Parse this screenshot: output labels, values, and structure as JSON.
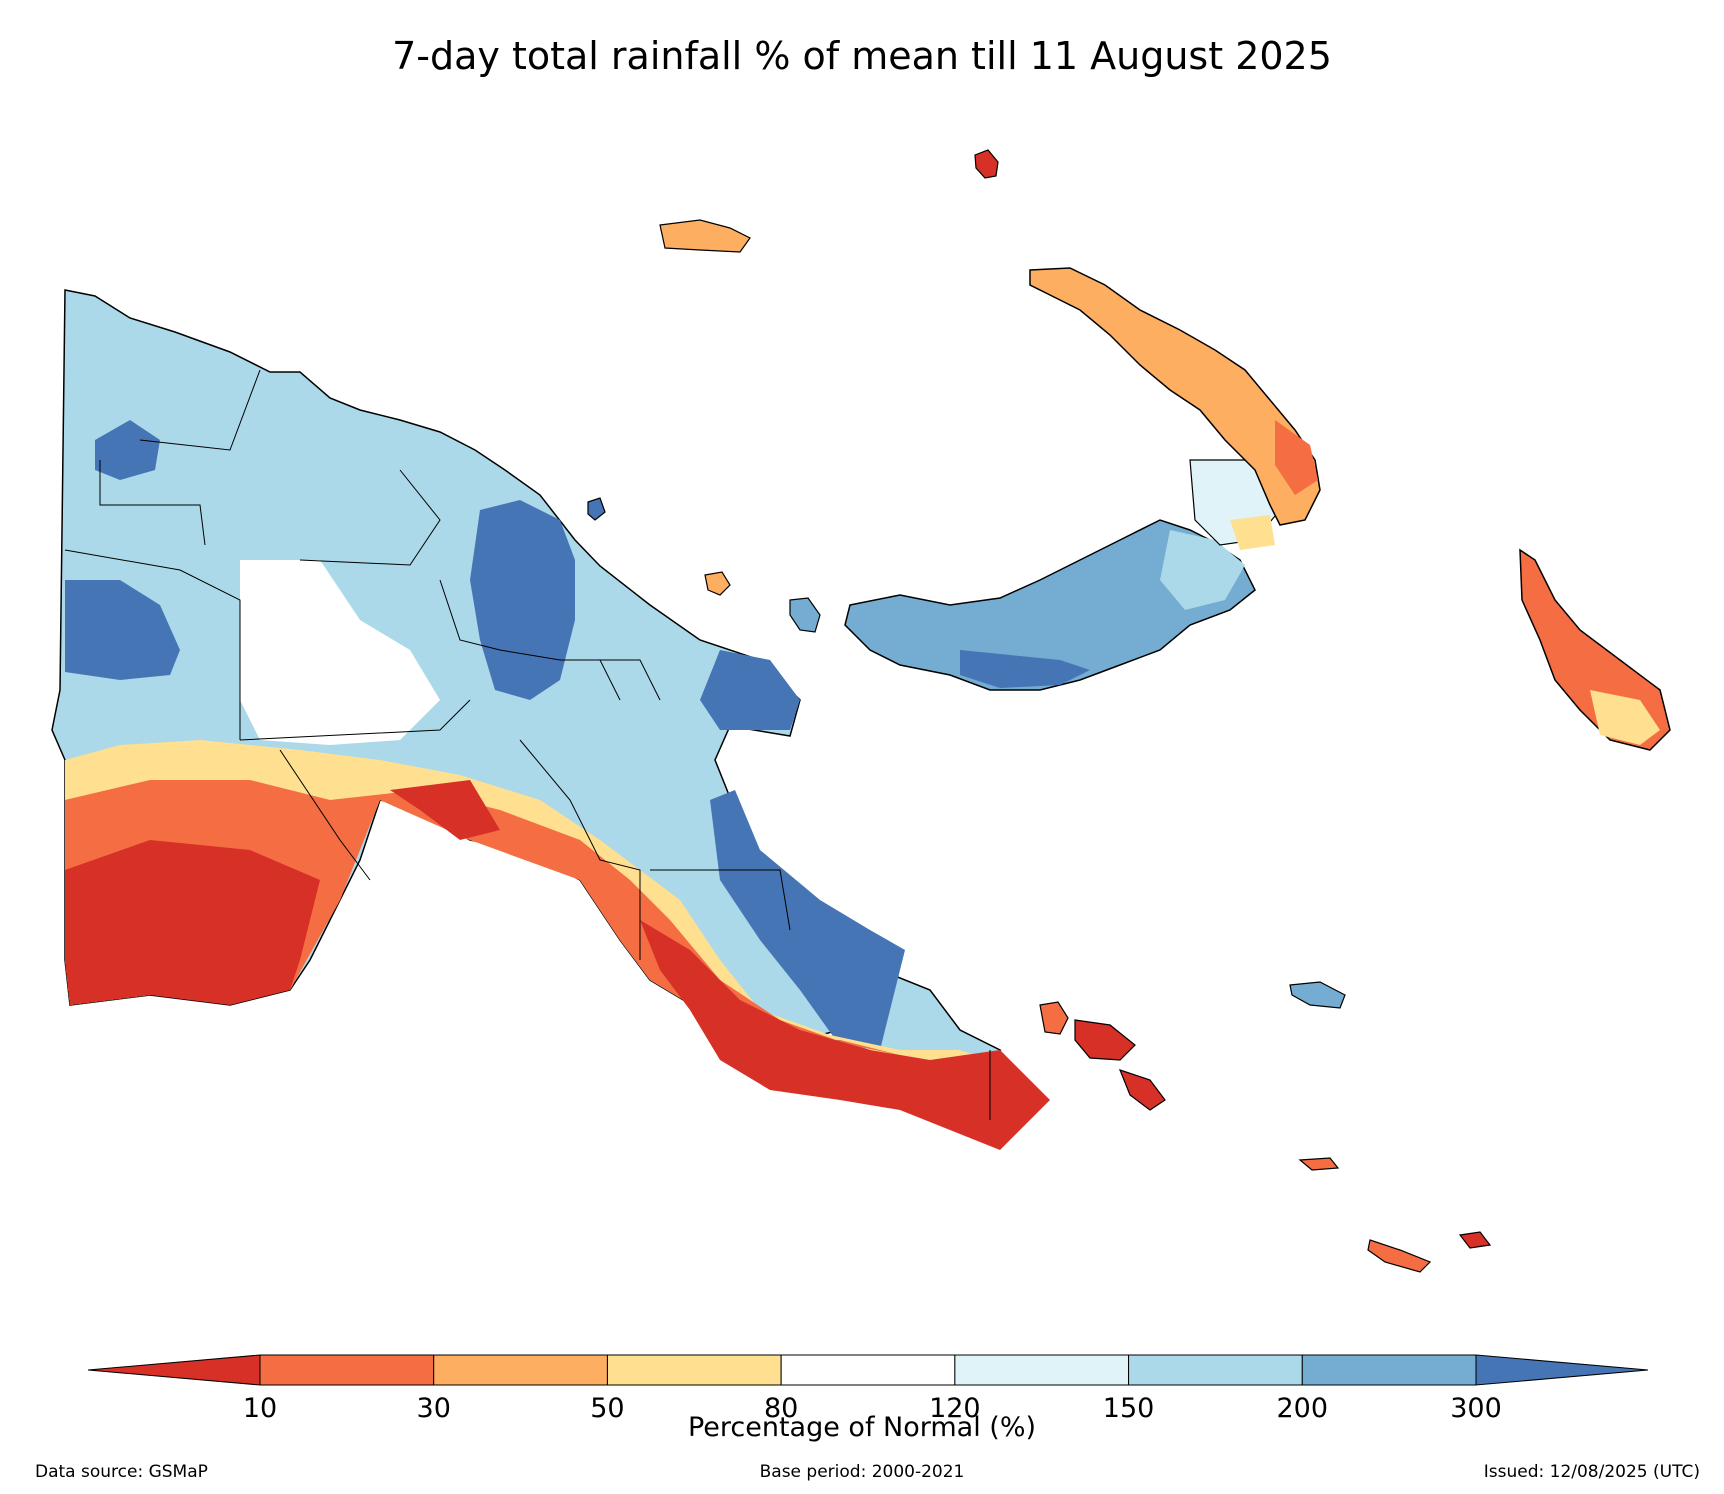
{
  "title": "7-day total rainfall % of mean till 11 August 2025",
  "colorbar": {
    "label": "Percentage of Normal (%)",
    "ticks": [
      "10",
      "30",
      "50",
      "80",
      "120",
      "150",
      "200",
      "300"
    ],
    "bins": [
      {
        "range": "<10",
        "color": "#d73027"
      },
      {
        "range": "10-30",
        "color": "#f46d43"
      },
      {
        "range": "30-50",
        "color": "#fdae61"
      },
      {
        "range": "50-80",
        "color": "#fee090"
      },
      {
        "range": "80-120",
        "color": "#ffffff"
      },
      {
        "range": "120-150",
        "color": "#e0f3f8"
      },
      {
        "range": "150-200",
        "color": "#abd9e9"
      },
      {
        "range": "200-300",
        "color": "#74add1"
      },
      {
        "range": ">300",
        "color": "#4575b4"
      }
    ]
  },
  "footer": {
    "source": "Data source: GSMaP",
    "base_period": "Base period: 2000-2021",
    "issued": "Issued: 12/08/2025 (UTC)"
  }
}
